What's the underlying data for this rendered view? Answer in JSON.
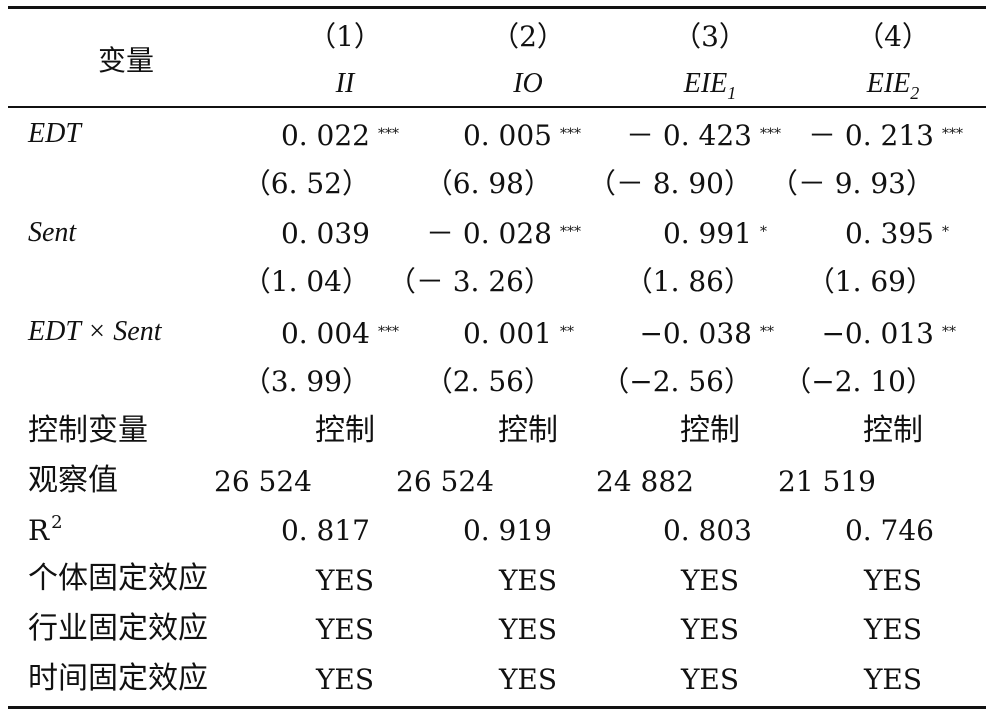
{
  "header": {
    "var_label": "变量",
    "columns": [
      {
        "num": "（1）",
        "name": "II",
        "sub": ""
      },
      {
        "num": "（2）",
        "name": "IO",
        "sub": ""
      },
      {
        "num": "（3）",
        "name": "EIE",
        "sub": "1"
      },
      {
        "num": "（4）",
        "name": "EIE",
        "sub": "2"
      }
    ]
  },
  "rows": {
    "edt": {
      "label": "EDT",
      "coef": [
        "0. 022",
        "0. 005",
        "－ 0. 423",
        "－ 0. 213"
      ],
      "stars": [
        "***",
        "***",
        "***",
        "***"
      ],
      "t": [
        "（6. 52）",
        "（6. 98）",
        "（－ 8. 90）",
        "（－ 9. 93）"
      ]
    },
    "sent": {
      "label": "Sent",
      "coef": [
        "0. 039",
        "－ 0. 028",
        "0. 991",
        "0. 395"
      ],
      "stars": [
        "",
        "***",
        "*",
        "*"
      ],
      "t": [
        "（1. 04）",
        "（－ 3. 26）",
        "（1. 86）",
        "（1. 69）"
      ]
    },
    "inter": {
      "label": "EDT × Sent",
      "coef": [
        "0. 004",
        "0. 001",
        "−0. 038",
        "−0. 013"
      ],
      "stars": [
        "***",
        "**",
        "**",
        "**"
      ],
      "t": [
        "（3. 99）",
        "（2. 56）",
        "（−2. 56）",
        "（−2. 10）"
      ]
    },
    "controls": {
      "label": "控制变量",
      "values": [
        "控制",
        "控制",
        "控制",
        "控制"
      ]
    },
    "obs": {
      "label": "观察值",
      "values": [
        "26 524",
        "26 524",
        "24 882",
        "21 519"
      ]
    },
    "r2": {
      "label": "R",
      "sup": "2",
      "values": [
        "0. 817",
        "0. 919",
        "0. 803",
        "0. 746"
      ]
    },
    "fe_ind": {
      "label": "个体固定效应",
      "values": [
        "YES",
        "YES",
        "YES",
        "YES"
      ]
    },
    "fe_industry": {
      "label": "行业固定效应",
      "values": [
        "YES",
        "YES",
        "YES",
        "YES"
      ]
    },
    "fe_time": {
      "label": "时间固定效应",
      "values": [
        "YES",
        "YES",
        "YES",
        "YES"
      ]
    }
  }
}
